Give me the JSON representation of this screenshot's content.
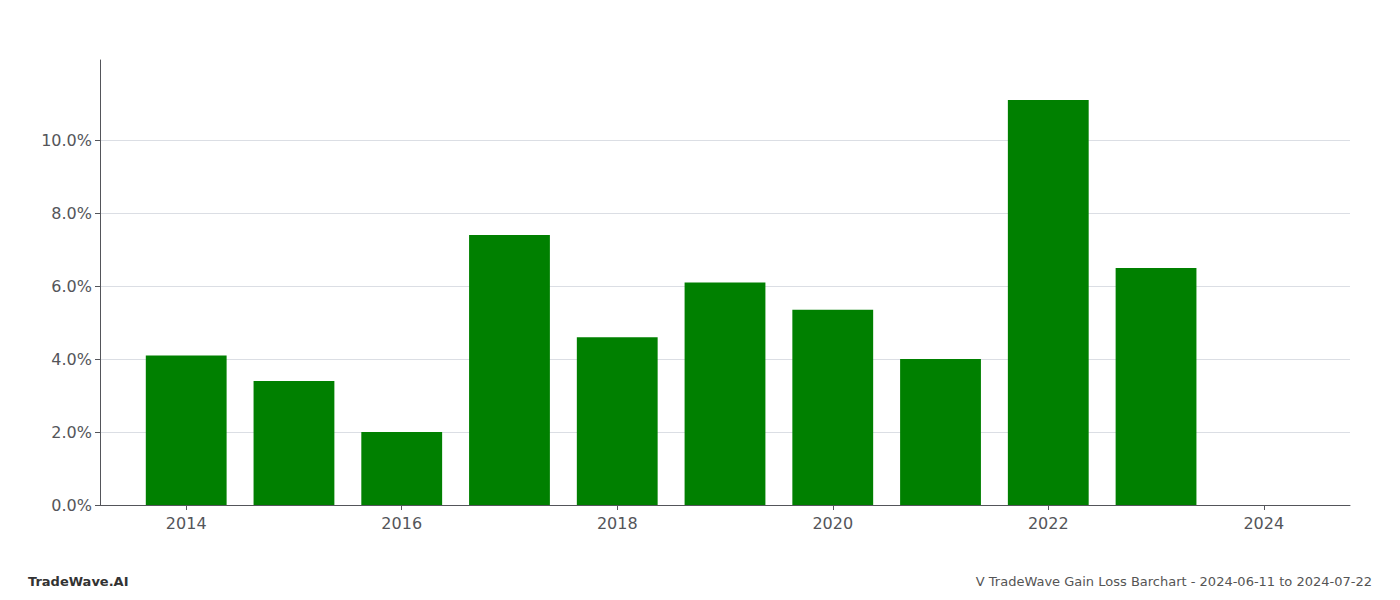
{
  "chart_data": {
    "type": "bar",
    "x": [
      2014,
      2015,
      2016,
      2017,
      2018,
      2019,
      2020,
      2021,
      2022,
      2023
    ],
    "values": [
      0.041,
      0.034,
      0.02,
      0.074,
      0.046,
      0.061,
      0.0535,
      0.04,
      0.111,
      0.065
    ],
    "color": "#008000",
    "xlim": [
      2013.2,
      2024.8
    ],
    "xticks": [
      2014,
      2016,
      2018,
      2020,
      2022,
      2024
    ],
    "ylim": [
      0,
      0.122
    ],
    "yticks": [
      {
        "value": 0,
        "label": "0.0%"
      },
      {
        "value": 0.02,
        "label": "2.0%"
      },
      {
        "value": 0.04,
        "label": "4.0%"
      },
      {
        "value": 0.06,
        "label": "6.0%"
      },
      {
        "value": 0.08,
        "label": "8.0%"
      },
      {
        "value": 0.1,
        "label": "10.0%"
      }
    ],
    "grid": true,
    "annotations": [
      "TradeWave.AI",
      "V TradeWave Gain Loss Barchart - 2024-06-11 to 2024-07-22"
    ]
  }
}
